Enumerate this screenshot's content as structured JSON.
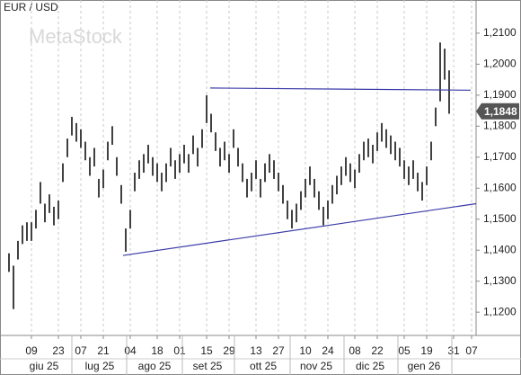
{
  "chart_data": {
    "type": "ohlc",
    "title": "EUR / USD",
    "watermark": "MetaStock",
    "color": "#111111",
    "categories": [
      null,
      null,
      null,
      null,
      null,
      "09",
      null,
      null,
      null,
      null,
      null,
      "23",
      null,
      null,
      null,
      null,
      "07",
      null,
      null,
      null,
      null,
      "21",
      null,
      null,
      null,
      null,
      null,
      "04",
      null,
      null,
      null,
      null,
      null,
      "18",
      null,
      null,
      null,
      null,
      "01",
      null,
      null,
      null,
      null,
      null,
      "15",
      null,
      null,
      null,
      null,
      "29",
      null,
      null,
      null,
      null,
      null,
      "13",
      null,
      null,
      null,
      null,
      "27",
      null,
      null,
      null,
      null,
      null,
      "10",
      null,
      null,
      null,
      null,
      "24",
      null,
      null,
      null,
      null,
      null,
      "08",
      null,
      null,
      null,
      null,
      "22",
      null,
      null,
      null,
      null,
      null,
      "05",
      null,
      null,
      null,
      null,
      "19",
      null,
      null,
      null,
      null,
      null,
      "31",
      null,
      null,
      null,
      "07"
    ],
    "high": [
      1.139,
      1.135,
      1.143,
      1.148,
      1.149,
      1.149,
      1.153,
      1.162,
      1.155,
      1.158,
      1.154,
      1.156,
      1.168,
      1.176,
      1.183,
      1.181,
      1.179,
      1.175,
      1.17,
      1.173,
      1.163,
      1.166,
      1.175,
      1.18,
      1.17,
      1.161,
      1.147,
      1.153,
      1.165,
      1.169,
      1.171,
      1.174,
      1.17,
      1.168,
      1.165,
      1.168,
      1.173,
      1.169,
      1.171,
      1.174,
      1.171,
      1.177,
      1.173,
      1.179,
      1.19,
      1.184,
      1.178,
      1.173,
      1.175,
      1.171,
      1.179,
      1.173,
      1.168,
      1.163,
      1.165,
      1.169,
      1.163,
      1.168,
      1.171,
      1.169,
      1.165,
      1.161,
      1.156,
      1.153,
      1.155,
      1.159,
      1.163,
      1.167,
      1.163,
      1.159,
      1.154,
      1.156,
      1.161,
      1.164,
      1.167,
      1.17,
      1.168,
      1.166,
      1.171,
      1.175,
      1.176,
      1.174,
      1.178,
      1.181,
      1.179,
      1.177,
      1.175,
      1.173,
      1.169,
      1.167,
      1.169,
      1.165,
      1.162,
      1.167,
      1.175,
      1.186,
      1.207,
      1.205,
      1.198,
      null,
      null,
      null,
      null,
      null
    ],
    "low": [
      1.133,
      1.121,
      1.137,
      1.142,
      1.143,
      1.143,
      1.147,
      1.155,
      1.149,
      1.152,
      1.148,
      1.15,
      1.162,
      1.17,
      1.177,
      1.175,
      1.173,
      1.169,
      1.164,
      1.167,
      1.157,
      1.16,
      1.169,
      1.174,
      1.164,
      1.155,
      1.1395,
      1.147,
      1.159,
      1.163,
      1.165,
      1.168,
      1.164,
      1.162,
      1.159,
      1.162,
      1.167,
      1.163,
      1.165,
      1.168,
      1.165,
      1.171,
      1.167,
      1.173,
      1.181,
      1.178,
      1.172,
      1.167,
      1.169,
      1.165,
      1.173,
      1.167,
      1.162,
      1.157,
      1.159,
      1.163,
      1.157,
      1.162,
      1.165,
      1.163,
      1.159,
      1.155,
      1.15,
      1.147,
      1.149,
      1.153,
      1.157,
      1.161,
      1.157,
      1.153,
      1.148,
      1.15,
      1.155,
      1.158,
      1.161,
      1.164,
      1.162,
      1.16,
      1.165,
      1.169,
      1.17,
      1.168,
      1.172,
      1.175,
      1.173,
      1.171,
      1.169,
      1.167,
      1.163,
      1.161,
      1.163,
      1.159,
      1.156,
      1.161,
      1.169,
      1.18,
      1.188,
      1.195,
      1.184,
      null,
      null,
      null,
      null,
      null
    ],
    "month_labels": [
      "giu 25",
      "lug 25",
      "ago 25",
      "set 25",
      "ott 25",
      "nov 25",
      "dic 25",
      "gen 26"
    ],
    "last_price": {
      "value": 1.1848,
      "label": "1,1848"
    },
    "trendlines": [
      {
        "x": [
          44.8,
          102.8
        ],
        "y": [
          1.1923,
          1.1916
        ],
        "color": "#3a3aa8"
      },
      {
        "x": [
          25.4,
          104
        ],
        "y": [
          1.1383,
          1.155
        ],
        "color": "#3a3aa8"
      }
    ],
    "ylim": [
      1.1125,
      1.2207
    ],
    "yticks": [
      {
        "value": 1.12,
        "label": "1,1200"
      },
      {
        "value": 1.13,
        "label": "1,1300"
      },
      {
        "value": 1.14,
        "label": "1,1400"
      },
      {
        "value": 1.15,
        "label": "1,1500"
      },
      {
        "value": 1.16,
        "label": "1,1600"
      },
      {
        "value": 1.17,
        "label": "1,1700"
      },
      {
        "value": 1.18,
        "label": "1,1800"
      },
      {
        "value": 1.19,
        "label": "1,1900"
      },
      {
        "value": 1.2,
        "label": "1,2000"
      },
      {
        "value": 1.21,
        "label": "1,2100"
      }
    ],
    "grid": true
  }
}
